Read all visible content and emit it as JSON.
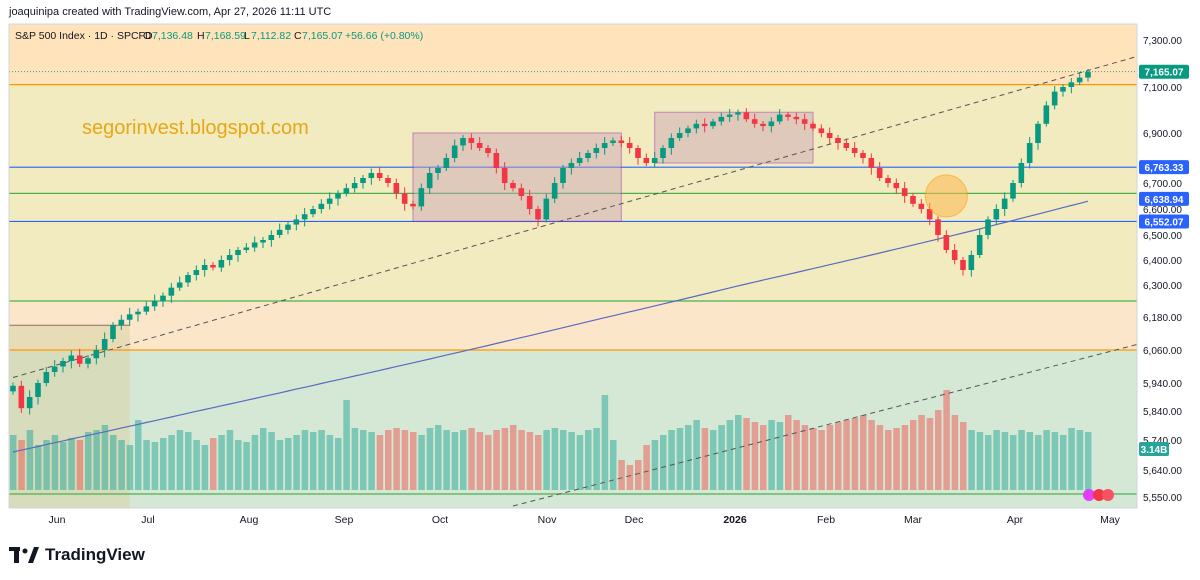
{
  "header": {
    "credit": "joaquinipa created with TradingView.com, Apr 27, 2026 11:11 UTC"
  },
  "legend": {
    "symbol": "S&P 500 Index · 1D · SPCFD",
    "open_label": "O",
    "open": "7,136.48",
    "high_label": "H",
    "high": "7,168.59",
    "low_label": "L",
    "low": "7,112.82",
    "close_label": "C",
    "close": "7,165.07",
    "change": "+56.66 (+0.80%)"
  },
  "watermark": "segorinvest.blogspot.com",
  "brand": "TradingView",
  "colors": {
    "up": "#089981",
    "down": "#f23645",
    "accent_blue": "#2962ff",
    "orange_line": "#ff9800",
    "green_line": "#4caf50",
    "purple_box": "#9c27b0",
    "ma_line": "#5b6abf"
  },
  "chart_data": {
    "type": "candlestick",
    "y_axis_ticks": [
      "7,300.00",
      "7,100.00",
      "6,900.00",
      "6,700.00",
      "6,600.00",
      "6,500.00",
      "6,400.00",
      "6,300.00",
      "6,180.00",
      "6,060.00",
      "5,940.00",
      "5,840.00",
      "5,740.00",
      "5,640.00",
      "5,550.00"
    ],
    "y_axis_tick_values": [
      7300,
      7100,
      6900,
      6700,
      6600,
      6500,
      6400,
      6300,
      6180,
      6060,
      5940,
      5840,
      5740,
      5640,
      5550
    ],
    "x_axis_labels": [
      "Jun",
      "Jul",
      "Aug",
      "Sep",
      "Oct",
      "Nov",
      "Dec",
      "2026",
      "Feb",
      "Mar",
      "Apr",
      "May"
    ],
    "price_labels": [
      {
        "value": 7165.07,
        "text": "7,165.07",
        "color": "#089981"
      },
      {
        "value": 6763.33,
        "text": "6,763.33",
        "color": "#2962ff"
      },
      {
        "value": 6638.94,
        "text": "6,638.94",
        "color": "#2962ff"
      },
      {
        "value": 6552.07,
        "text": "6,552.07",
        "color": "#2962ff"
      }
    ],
    "volume_label": "3.14B",
    "horizontal_lines": [
      {
        "value": 7110,
        "color": "#ff9800"
      },
      {
        "value": 6763.33,
        "color": "#2962ff"
      },
      {
        "value": 6660,
        "color": "#4caf50"
      },
      {
        "value": 6552.07,
        "color": "#2962ff"
      },
      {
        "value": 6240,
        "color": "#4caf50"
      },
      {
        "value": 6060,
        "color": "#ff9800"
      },
      {
        "value": 5560,
        "color": "#4caf50"
      }
    ],
    "zones": [
      {
        "from": 7400,
        "to": 7110,
        "color": "#ffe0b2"
      },
      {
        "from": 7110,
        "to": 6240,
        "color": "#f0e9b8"
      },
      {
        "from": 6240,
        "to": 6060,
        "color": "#fbe3c4"
      },
      {
        "from": 6060,
        "to": 5500,
        "color": "#cfe5d0"
      }
    ],
    "close_series": [
      5930,
      5850,
      5890,
      5940,
      5980,
      6000,
      6020,
      6040,
      6010,
      6030,
      6060,
      6100,
      6150,
      6170,
      6190,
      6200,
      6220,
      6240,
      6260,
      6290,
      6310,
      6340,
      6360,
      6380,
      6370,
      6400,
      6420,
      6440,
      6450,
      6470,
      6480,
      6500,
      6520,
      6540,
      6560,
      6580,
      6600,
      6620,
      6640,
      6660,
      6680,
      6700,
      6720,
      6740,
      6720,
      6700,
      6660,
      6620,
      6610,
      6680,
      6740,
      6760,
      6800,
      6850,
      6880,
      6860,
      6840,
      6820,
      6760,
      6700,
      6680,
      6650,
      6600,
      6560,
      6640,
      6700,
      6760,
      6780,
      6800,
      6820,
      6840,
      6860,
      6870,
      6860,
      6840,
      6800,
      6780,
      6800,
      6840,
      6880,
      6900,
      6920,
      6940,
      6930,
      6950,
      6970,
      6980,
      6990,
      6960,
      6940,
      6930,
      6950,
      6980,
      6970,
      6960,
      6940,
      6920,
      6900,
      6880,
      6860,
      6840,
      6820,
      6800,
      6760,
      6720,
      6700,
      6680,
      6650,
      6620,
      6600,
      6560,
      6500,
      6440,
      6400,
      6360,
      6420,
      6500,
      6560,
      6600,
      6640,
      6700,
      6780,
      6860,
      6940,
      7020,
      7080,
      7100,
      7120,
      7140,
      7165
    ],
    "ma_start": 5700,
    "ma_end": 6630,
    "boxes": [
      {
        "start_index": 48,
        "end_index": 73,
        "top": 6900,
        "bottom": 6552.07
      },
      {
        "start_index": 77,
        "end_index": 96,
        "top": 6990,
        "bottom": 6780
      }
    ],
    "trendlines": [
      {
        "start_index": 0,
        "start_value": 5960,
        "end_index": 129,
        "end_value": 7230,
        "style": "dashed"
      },
      {
        "start_index": 60,
        "start_value": 5520,
        "end_index": 129,
        "end_value": 6080,
        "style": "dashed"
      }
    ],
    "highlight_circle": {
      "index": 112,
      "value": 6650
    },
    "left_box": {
      "start_index": 0,
      "end_index": 14,
      "top": 6150,
      "bottom": 5500
    },
    "volume_series": [
      0.55,
      0.5,
      0.6,
      0.45,
      0.5,
      0.55,
      0.48,
      0.52,
      0.5,
      0.58,
      0.6,
      0.65,
      0.55,
      0.5,
      0.45,
      0.7,
      0.5,
      0.48,
      0.52,
      0.55,
      0.6,
      0.58,
      0.5,
      0.45,
      0.52,
      0.55,
      0.6,
      0.5,
      0.48,
      0.55,
      0.62,
      0.58,
      0.5,
      0.52,
      0.55,
      0.6,
      0.58,
      0.6,
      0.55,
      0.52,
      0.9,
      0.62,
      0.6,
      0.58,
      0.55,
      0.6,
      0.62,
      0.6,
      0.58,
      0.55,
      0.62,
      0.65,
      0.6,
      0.58,
      0.6,
      0.62,
      0.58,
      0.55,
      0.6,
      0.62,
      0.65,
      0.6,
      0.58,
      0.55,
      0.6,
      0.62,
      0.6,
      0.58,
      0.55,
      0.6,
      0.62,
      0.95,
      0.5,
      0.3,
      0.25,
      0.3,
      0.45,
      0.5,
      0.55,
      0.6,
      0.62,
      0.65,
      0.7,
      0.62,
      0.6,
      0.65,
      0.7,
      0.75,
      0.72,
      0.68,
      0.65,
      0.7,
      0.68,
      0.75,
      0.7,
      0.65,
      0.62,
      0.6,
      0.65,
      0.68,
      0.7,
      0.72,
      0.75,
      0.7,
      0.65,
      0.6,
      0.62,
      0.65,
      0.7,
      0.75,
      0.72,
      0.8,
      1.0,
      0.75,
      0.68,
      0.6,
      0.58,
      0.55,
      0.6,
      0.58,
      0.55,
      0.6,
      0.58,
      0.55,
      0.6,
      0.58,
      0.55,
      0.62,
      0.6,
      0.58
    ],
    "y_min": 5510,
    "y_max": 7370
  }
}
